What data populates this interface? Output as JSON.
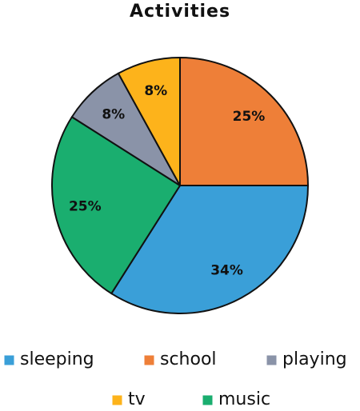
{
  "chart_data": {
    "type": "pie",
    "title": "Activities",
    "categories": [
      "school",
      "sleeping",
      "music",
      "playing",
      "tv"
    ],
    "values": [
      25,
      34,
      25,
      8,
      8
    ],
    "value_labels": [
      "25%",
      "34%",
      "25%",
      "8%",
      "8%"
    ],
    "colors": [
      "#ee7f38",
      "#3a9fd8",
      "#1aae6f",
      "#8a93a8",
      "#fdb31b"
    ],
    "legend": "bottom"
  }
}
